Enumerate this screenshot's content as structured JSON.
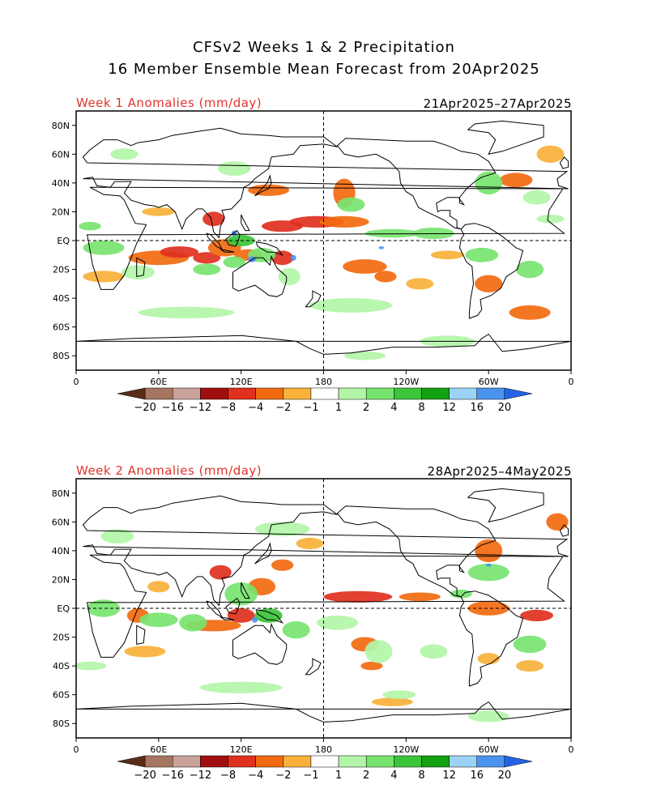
{
  "title": {
    "line1": "CFSv2 Weeks 1 & 2 Precipitation",
    "line2": "16 Member Ensemble Mean Forecast from 20Apr2025"
  },
  "panels": [
    {
      "heading": "Week 1 Anomalies (mm/day)",
      "dates": "21Apr2025–27Apr2025"
    },
    {
      "heading": "Week 2 Anomalies (mm/day)",
      "dates": "28Apr2025–4May2025"
    }
  ],
  "axes": {
    "lat_labels": [
      "80N",
      "60N",
      "40N",
      "20N",
      "EQ",
      "20S",
      "40S",
      "60S",
      "80S"
    ],
    "lon_labels": [
      "0",
      "60E",
      "120E",
      "180",
      "120W",
      "60W",
      "0"
    ]
  },
  "colorbar": {
    "labels": [
      "−20",
      "−16",
      "−12",
      "−8",
      "−4",
      "−2",
      "−1",
      "1",
      "2",
      "4",
      "8",
      "12",
      "16",
      "20"
    ],
    "colors": [
      "#5a2d1a",
      "#a57560",
      "#c9a39a",
      "#a00f0f",
      "#e0301e",
      "#f26a10",
      "#f9b13a",
      "#ffffff",
      "#b3f5a8",
      "#78e470",
      "#3cc43a",
      "#13a213",
      "#9cd2f7",
      "#4a94ee",
      "#2463e6"
    ]
  },
  "anomaly_palette": {
    "dry_strong": "#e0301e",
    "dry_mid": "#f26a10",
    "dry_weak": "#f9b13a",
    "wet_weak": "#b3f5a8",
    "wet_mid": "#78e470",
    "wet_strong": "#3cc43a",
    "very_wet": "#4a94ee"
  }
}
